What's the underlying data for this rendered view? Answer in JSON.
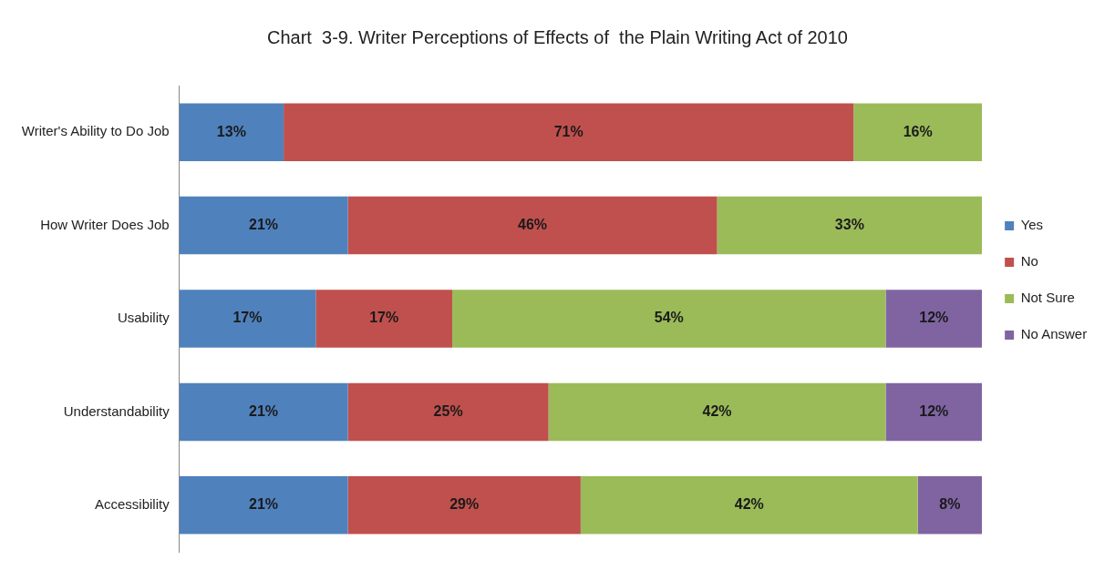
{
  "chart_data": {
    "type": "bar",
    "orientation": "horizontal",
    "stacked": true,
    "title": "Chart  3-9. Writer Perceptions of Effects of  the Plain Writing Act of 2010",
    "categories": [
      "Writer's Ability to Do Job",
      "How Writer Does Job",
      "Usability",
      "Understandability",
      "Accessibility"
    ],
    "series": [
      {
        "name": "Yes",
        "color": "#4f81bd",
        "values": [
          13,
          21,
          17,
          21,
          21
        ],
        "value_labels": [
          "13%",
          "21%",
          "17%",
          "21%",
          "21%"
        ]
      },
      {
        "name": "No",
        "color": "#c0504d",
        "values": [
          71,
          46,
          17,
          25,
          29
        ],
        "value_labels": [
          "71%",
          "46%",
          "17%",
          "25%",
          "29%"
        ]
      },
      {
        "name": "Not Sure",
        "color": "#9bbb59",
        "values": [
          16,
          33,
          54,
          42,
          42
        ],
        "value_labels": [
          "16%",
          "33%",
          "54%",
          "42%",
          "42%"
        ]
      },
      {
        "name": "No Answer",
        "color": "#8064a2",
        "values": [
          null,
          null,
          12,
          12,
          8
        ],
        "value_labels": [
          null,
          null,
          "12%",
          "12%",
          "8%"
        ]
      }
    ],
    "xlim": [
      0,
      100
    ],
    "tick_labels": "y",
    "legend": "right"
  }
}
